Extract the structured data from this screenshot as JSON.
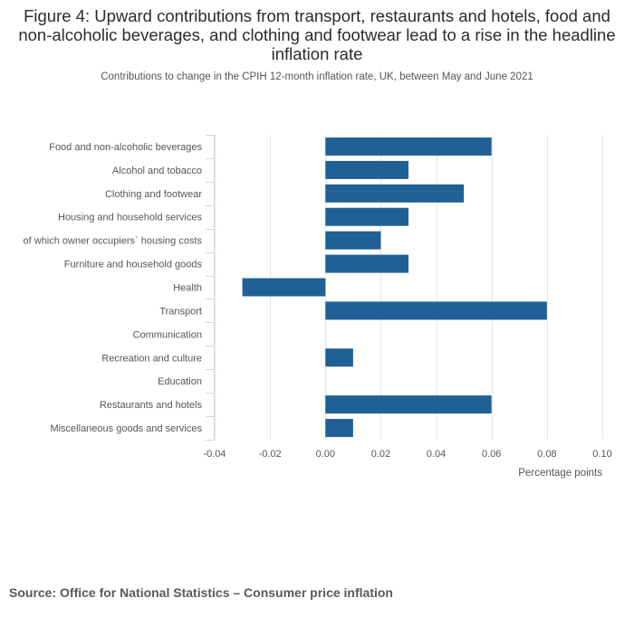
{
  "title": "Figure 4: Upward contributions from transport, restaurants and hotels, food and non-alcoholic beverages, and clothing and footwear lead to a rise in the headline inflation rate",
  "subtitle": "Contributions to change in the CPIH 12-month inflation rate, UK, between May and June 2021",
  "source": "Source: Office for National Statistics – Consumer price inflation",
  "colors": {
    "bar": "#206095",
    "grid": "#e6e6e6",
    "axis_bracket": "#ccd6eb",
    "tick_label": "#555555"
  },
  "chart_data": {
    "type": "bar",
    "orientation": "horizontal",
    "categories": [
      "Food and non-alcoholic beverages",
      "Alcohol and tobacco",
      "Clothing and footwear",
      "Housing and household services",
      "of which owner occupiers` housing costs",
      "Furniture and household goods",
      "Health",
      "Transport",
      "Communication",
      "Recreation and culture",
      "Education",
      "Restaurants and hotels",
      "Miscellaneous goods and services"
    ],
    "values": [
      0.06,
      0.03,
      0.05,
      0.03,
      0.02,
      0.03,
      -0.03,
      0.08,
      0,
      0.01,
      0,
      0.06,
      0.01
    ],
    "xlabel": "Percentage points",
    "ylabel": "",
    "xlim": [
      -0.04,
      0.1
    ],
    "xticks": [
      -0.04,
      -0.02,
      0.0,
      0.02,
      0.04,
      0.06,
      0.08,
      0.1
    ],
    "xtick_labels": [
      "-0.04",
      "-0.02",
      "0.00",
      "0.02",
      "0.04",
      "0.06",
      "0.08",
      "0.10"
    ],
    "grid": true
  }
}
